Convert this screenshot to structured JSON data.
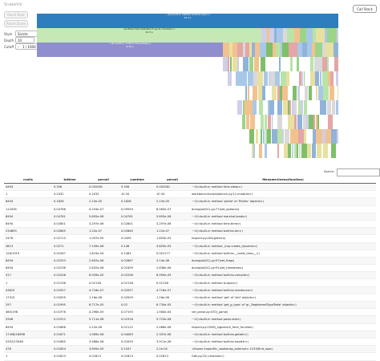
{
  "app": {
    "brand": "SnakeViz"
  },
  "toolbar": {
    "reset_root": "Reset Root",
    "reset_zoom": "Reset Zoom",
    "call_stack": "Call Stack"
  },
  "controls": {
    "style_label": "Style",
    "style_value": "Sicicle",
    "depth_label": "Depth",
    "depth_value": "10",
    "cutoff_label": "Cutoff",
    "cutoff_value": "1 / 1000",
    "minus": "–",
    "plus": "+"
  },
  "flame": {
    "bars": [
      {
        "label": "~:0(<built-in method builtins.exec>)\n10.3 s",
        "color": "#2e7dbf"
      },
      {
        "label": "workbench/scripts/bench.py:1(<module>)\n10.3 s",
        "color": "#c6e8b5"
      },
      {
        "label": "~:0(<built-in method time.sleep>)\n9.36 s",
        "color": "#8f8fcf"
      }
    ]
  },
  "search": {
    "label": "Search:",
    "value": ""
  },
  "table": {
    "headers": [
      "ncalls",
      "tottime",
      "percall",
      "cumtime",
      "percall",
      "filename:lineno(function)"
    ],
    "rows": [
      [
        "4494",
        "9.356",
        "0.002081",
        "9.356",
        "0.002081",
        "~:0(<built-in method time.sleep>)"
      ],
      [
        "1",
        "0.2032",
        "0.2032",
        "10.34",
        "10.34",
        "workbench/scripts/bench.py:1(<module>)"
      ],
      [
        "8494",
        "0.1826",
        "2.15e-05",
        "0.1826",
        "2.15e-05",
        "~:0(<built-in method 'pickle' of 'Pickler' objects>)"
      ],
      [
        "112026",
        "0.04766",
        "4.254e-07",
        "0.09594",
        "8.563e-07",
        "dumpjob(SC).py:77(set_optional)"
      ],
      [
        "8494",
        "0.04761",
        "5.605e-06",
        "0.04761",
        "5.605e-06",
        "~:0(<built-in method marshal.loads>)"
      ],
      [
        "8494",
        "0.02801",
        "3.297e-06",
        "0.02801",
        "3.297e-06",
        "~:0(<built-in method time.time>)"
      ],
      [
        "234893",
        "0.02865",
        "1.22e-07",
        "0.02865",
        "1.22e-07",
        "~:0(<built-in method builtins.len>)"
      ],
      [
        "2476",
        "0.02715",
        "1.097e-05",
        "0.0459",
        "1.853e-05",
        "inspect.py:454(getmro)"
      ],
      [
        "3813",
        "0.0271",
        "7.109e-06",
        "0.146",
        "3.829e-05",
        "~:0(<built-in method _imp.create_dynamic>)"
      ],
      [
        "126/1919",
        "0.02287",
        "1.815e-04",
        "0.1483",
        "0.001177",
        "~:0(<built-in method builtins.__build_class__>)"
      ],
      [
        "8494",
        "0.02253",
        "2.652e-06",
        "0.02667",
        "3.14e-06",
        "dumpjob(SC).py:97(set_flags)"
      ],
      [
        "8494",
        "0.02236",
        "2.632e-06",
        "0.02409",
        "2.836e-06",
        "dumpjob(SC).py:91(set_timestamp)"
      ],
      [
        "317",
        "0.02206",
        "6.959e-05",
        "0.02206",
        "6.959e-05",
        "~:0(<built-in method builtins.compile>)"
      ],
      [
        "1",
        "0.02138",
        "0.02138",
        "0.02138",
        "0.02138",
        "~:0(<built-in method io.open>)"
      ],
      [
        "43615",
        "0.02057",
        "4.716e-07",
        "0.02057",
        "4.716e-07",
        "~:0(<built-in method builtins.isinstance>)"
      ],
      [
        "17315",
        "0.02009",
        "1.16e-06",
        "0.02009",
        "1.16e-06",
        "~:0(<built-in method 'get' of 'dict' objects>)"
      ],
      [
        "297",
        "0.01995",
        "6.717e-05",
        "0.02",
        "6.734e-05",
        "~:0(<built-in method 'get_g_type' of 'gi._RegisteredTypeTable' objects>)"
      ],
      [
        "460/198",
        "0.01976",
        "4.296e-05",
        "0.07193",
        "1.564e-04",
        "sre_parse.py:470(_parse)"
      ],
      [
        "3348",
        "0.01912",
        "5.711e-06",
        "0.01916",
        "5.723e-06",
        "~:0(<built-in method posix.stat>)"
      ],
      [
        "8494",
        "0.01886",
        "2.22e-06",
        "0.02112",
        "2.486e-06",
        "inspect.py:2356(_signature_from_function)"
      ],
      [
        "17498/16896",
        "0.01871",
        "1.069e-06",
        "0.04089",
        "2.337e-06",
        "~:0(<built-in method builtins.getattr>)"
      ],
      [
        "5352/23348",
        "0.01865",
        "3.486e-06",
        "0.02093",
        "3.911e-06",
        "~:0(<built-in method builtins.hasattr>)"
      ],
      [
        "476",
        "0.01854",
        "3.895e-05",
        "0.1047",
        "2.2e-04",
        "<frozen importlib._bootstrap_external>:1233(find_spec)"
      ],
      [
        "1",
        "0.01813",
        "0.01813",
        "0.01813",
        "0.01813",
        "Gdk.py:22(<module>)"
      ]
    ]
  }
}
